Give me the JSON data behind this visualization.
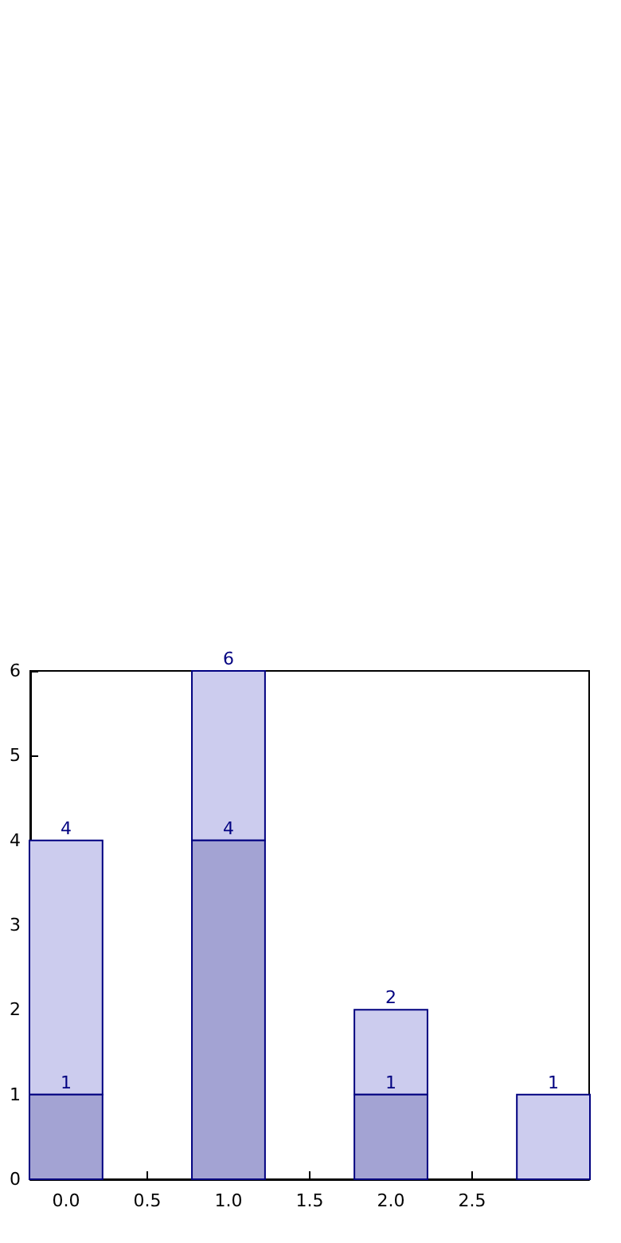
{
  "chart_data": {
    "type": "bar",
    "x": [
      0,
      1,
      2,
      3
    ],
    "stacked": true,
    "series": [
      {
        "color": "#a3a3d3",
        "values": [
          1,
          4,
          1,
          null
        ],
        "value_labels": [
          "1",
          "4",
          "1",
          null
        ]
      },
      {
        "color": "#ccccee",
        "values": [
          3,
          2,
          1,
          1
        ]
      }
    ],
    "totals": [
      "4",
      "6",
      "2",
      "1"
    ],
    "xlim": [
      -0.22,
      3.22
    ],
    "xticks": [
      {
        "value": 0,
        "label": "0.0"
      },
      {
        "value": 0.5,
        "label": "0.5"
      },
      {
        "value": 1,
        "label": "1.0"
      },
      {
        "value": 1.5,
        "label": "1.5"
      },
      {
        "value": 2,
        "label": "2.0"
      },
      {
        "value": 2.5,
        "label": "2.5"
      }
    ],
    "ylim": [
      0,
      6
    ],
    "yticks": [
      0,
      1,
      2,
      3,
      4,
      5,
      6
    ]
  }
}
